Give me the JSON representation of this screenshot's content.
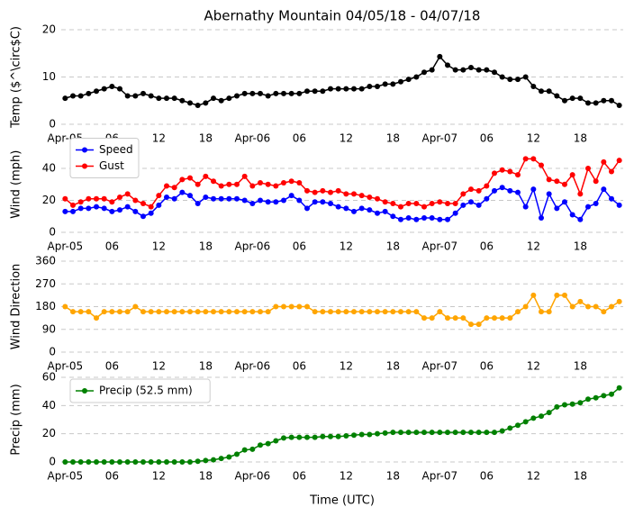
{
  "chart_data": [
    {
      "type": "line",
      "title": "Abernathy Mountain 04/05/18 - 04/07/18",
      "ylabel": "Temp ($^\\circ$C)",
      "x": [
        0,
        1,
        2,
        3,
        4,
        5,
        6,
        7,
        8,
        9,
        10,
        11,
        12,
        13,
        14,
        15,
        16,
        17,
        18,
        19,
        20,
        21,
        22,
        23,
        24,
        25,
        26,
        27,
        28,
        29,
        30,
        31,
        32,
        33,
        34,
        35,
        36,
        37,
        38,
        39,
        40,
        41,
        42,
        43,
        44,
        45,
        46,
        47,
        48,
        49,
        50,
        51,
        52,
        53,
        54,
        55,
        56,
        57,
        58,
        59,
        60,
        61,
        62,
        63,
        64,
        65,
        66,
        67,
        68,
        69,
        70,
        71
      ],
      "xlim": [
        -0.5,
        71.5
      ],
      "xticks": [
        {
          "value": 0,
          "label": "Apr-05"
        },
        {
          "value": 6,
          "label": "06"
        },
        {
          "value": 12,
          "label": "12"
        },
        {
          "value": 18,
          "label": "18"
        },
        {
          "value": 24,
          "label": "Apr-06"
        },
        {
          "value": 30,
          "label": "06"
        },
        {
          "value": 36,
          "label": "12"
        },
        {
          "value": 42,
          "label": "18"
        },
        {
          "value": 48,
          "label": "Apr-07"
        },
        {
          "value": 54,
          "label": "06"
        },
        {
          "value": 60,
          "label": "12"
        },
        {
          "value": 66,
          "label": "18"
        }
      ],
      "ylim": [
        0,
        20
      ],
      "yticks": [
        0,
        10,
        20
      ],
      "grid": true,
      "series": [
        {
          "color": "#000000",
          "values": [
            5.5,
            6,
            6,
            6.5,
            7,
            7.5,
            8,
            7.5,
            6,
            6,
            6.5,
            6,
            5.5,
            5.5,
            5.5,
            5,
            4.5,
            4,
            4.5,
            5.5,
            5,
            5.5,
            6,
            6.5,
            6.5,
            6.5,
            6,
            6.5,
            6.5,
            6.5,
            6.5,
            7,
            7,
            7,
            7.5,
            7.5,
            7.5,
            7.5,
            7.5,
            8,
            8,
            8.5,
            8.5,
            9,
            9.5,
            10,
            11,
            11.5,
            14.3,
            12.5,
            11.5,
            11.5,
            12,
            11.5,
            11.5,
            11,
            10,
            9.5,
            9.5,
            10,
            8,
            7,
            7,
            6,
            5,
            5.5,
            5.5,
            4.5,
            4.5,
            5,
            5,
            4
          ]
        }
      ]
    },
    {
      "type": "line",
      "ylabel": "Wind (mph)",
      "x": [
        0,
        1,
        2,
        3,
        4,
        5,
        6,
        7,
        8,
        9,
        10,
        11,
        12,
        13,
        14,
        15,
        16,
        17,
        18,
        19,
        20,
        21,
        22,
        23,
        24,
        25,
        26,
        27,
        28,
        29,
        30,
        31,
        32,
        33,
        34,
        35,
        36,
        37,
        38,
        39,
        40,
        41,
        42,
        43,
        44,
        45,
        46,
        47,
        48,
        49,
        50,
        51,
        52,
        53,
        54,
        55,
        56,
        57,
        58,
        59,
        60,
        61,
        62,
        63,
        64,
        65,
        66,
        67,
        68,
        69,
        70,
        71
      ],
      "xlim": [
        -0.5,
        71.5
      ],
      "xticks": [
        {
          "value": 0,
          "label": "Apr-05"
        },
        {
          "value": 6,
          "label": "06"
        },
        {
          "value": 12,
          "label": "12"
        },
        {
          "value": 18,
          "label": "18"
        },
        {
          "value": 24,
          "label": "Apr-06"
        },
        {
          "value": 30,
          "label": "06"
        },
        {
          "value": 36,
          "label": "12"
        },
        {
          "value": 42,
          "label": "18"
        },
        {
          "value": 48,
          "label": "Apr-07"
        },
        {
          "value": 54,
          "label": "06"
        },
        {
          "value": 60,
          "label": "12"
        },
        {
          "value": 66,
          "label": "18"
        }
      ],
      "ylim": [
        0,
        60
      ],
      "yticks": [
        0,
        20,
        40
      ],
      "grid": true,
      "legend": "upper left",
      "series": [
        {
          "name": "Speed",
          "color": "#0000ff",
          "values": [
            13,
            13,
            15,
            15,
            16,
            15,
            13,
            14,
            16,
            13,
            10,
            12,
            17,
            22,
            21,
            25,
            23,
            18,
            22,
            21,
            21,
            21,
            21,
            20,
            18,
            20,
            19,
            19,
            20,
            23,
            20,
            15,
            19,
            19,
            18,
            16,
            15,
            13,
            15,
            14,
            12,
            13,
            10,
            8,
            9,
            8,
            9,
            9,
            8,
            8,
            12,
            17,
            19,
            17,
            21,
            26,
            28,
            26,
            25,
            16,
            27,
            9,
            24,
            15,
            19,
            11,
            8,
            16,
            18,
            27,
            21,
            17
          ]
        },
        {
          "name": "Gust",
          "color": "#ff0000",
          "values": [
            21,
            17,
            19,
            21,
            21,
            21,
            19,
            22,
            24,
            20,
            18,
            16,
            23,
            29,
            28,
            33,
            34,
            30,
            35,
            32,
            29,
            30,
            30,
            35,
            29,
            31,
            30,
            29,
            31,
            32,
            31,
            26,
            25,
            26,
            25,
            26,
            24,
            24,
            23,
            22,
            21,
            19,
            18,
            16,
            18,
            18,
            16,
            18,
            19,
            18,
            18,
            24,
            27,
            26,
            29,
            37,
            39,
            38,
            36,
            46,
            46,
            42,
            33,
            32,
            30,
            36,
            24,
            40,
            32,
            44,
            38,
            45
          ]
        }
      ]
    },
    {
      "type": "line",
      "ylabel": "Wind Direction",
      "x": [
        0,
        1,
        2,
        3,
        4,
        5,
        6,
        7,
        8,
        9,
        10,
        11,
        12,
        13,
        14,
        15,
        16,
        17,
        18,
        19,
        20,
        21,
        22,
        23,
        24,
        25,
        26,
        27,
        28,
        29,
        30,
        31,
        32,
        33,
        34,
        35,
        36,
        37,
        38,
        39,
        40,
        41,
        42,
        43,
        44,
        45,
        46,
        47,
        48,
        49,
        50,
        51,
        52,
        53,
        54,
        55,
        56,
        57,
        58,
        59,
        60,
        61,
        62,
        63,
        64,
        65,
        66,
        67,
        68,
        69,
        70,
        71
      ],
      "xlim": [
        -0.5,
        71.5
      ],
      "xticks": [
        {
          "value": 0,
          "label": "Apr-05"
        },
        {
          "value": 6,
          "label": "06"
        },
        {
          "value": 12,
          "label": "12"
        },
        {
          "value": 18,
          "label": "18"
        },
        {
          "value": 24,
          "label": "Apr-06"
        },
        {
          "value": 30,
          "label": "06"
        },
        {
          "value": 36,
          "label": "12"
        },
        {
          "value": 42,
          "label": "18"
        },
        {
          "value": 48,
          "label": "Apr-07"
        },
        {
          "value": 54,
          "label": "06"
        },
        {
          "value": 60,
          "label": "12"
        },
        {
          "value": 66,
          "label": "18"
        }
      ],
      "ylim": [
        0,
        360
      ],
      "yticks": [
        0,
        90,
        180,
        270,
        360
      ],
      "grid": true,
      "series": [
        {
          "color": "#ffa500",
          "values": [
            180,
            160,
            160,
            160,
            135,
            160,
            160,
            160,
            160,
            180,
            160,
            160,
            160,
            160,
            160,
            160,
            160,
            160,
            160,
            160,
            160,
            160,
            160,
            160,
            160,
            160,
            160,
            180,
            180,
            180,
            180,
            180,
            160,
            160,
            160,
            160,
            160,
            160,
            160,
            160,
            160,
            160,
            160,
            160,
            160,
            160,
            135,
            135,
            160,
            135,
            135,
            135,
            110,
            110,
            135,
            135,
            135,
            135,
            160,
            180,
            225,
            160,
            160,
            225,
            225,
            180,
            200,
            180,
            180,
            160,
            180,
            200
          ]
        }
      ]
    },
    {
      "type": "line",
      "ylabel": "Precip (mm)",
      "xlabel": "Time (UTC)",
      "x": [
        0,
        1,
        2,
        3,
        4,
        5,
        6,
        7,
        8,
        9,
        10,
        11,
        12,
        13,
        14,
        15,
        16,
        17,
        18,
        19,
        20,
        21,
        22,
        23,
        24,
        25,
        26,
        27,
        28,
        29,
        30,
        31,
        32,
        33,
        34,
        35,
        36,
        37,
        38,
        39,
        40,
        41,
        42,
        43,
        44,
        45,
        46,
        47,
        48,
        49,
        50,
        51,
        52,
        53,
        54,
        55,
        56,
        57,
        58,
        59,
        60,
        61,
        62,
        63,
        64,
        65,
        66,
        67,
        68,
        69,
        70,
        71
      ],
      "xlim": [
        -0.5,
        71.5
      ],
      "xticks": [
        {
          "value": 0,
          "label": "Apr-05"
        },
        {
          "value": 6,
          "label": "06"
        },
        {
          "value": 12,
          "label": "12"
        },
        {
          "value": 18,
          "label": "18"
        },
        {
          "value": 24,
          "label": "Apr-06"
        },
        {
          "value": 30,
          "label": "06"
        },
        {
          "value": 36,
          "label": "12"
        },
        {
          "value": 42,
          "label": "18"
        },
        {
          "value": 48,
          "label": "Apr-07"
        },
        {
          "value": 54,
          "label": "06"
        },
        {
          "value": 60,
          "label": "12"
        },
        {
          "value": 66,
          "label": "18"
        }
      ],
      "ylim": [
        0,
        60
      ],
      "yticks": [
        0,
        20,
        40,
        60
      ],
      "grid": true,
      "legend": "upper left",
      "series": [
        {
          "name": "Precip (52.5 mm)",
          "color": "#008000",
          "values": [
            0,
            0,
            0,
            0,
            0,
            0,
            0,
            0,
            0,
            0,
            0,
            0,
            0,
            0,
            0,
            0,
            0,
            0.5,
            1,
            1.5,
            2.5,
            3.5,
            5.5,
            8.5,
            9,
            12,
            13,
            15,
            17,
            17.5,
            17.5,
            17.5,
            17.5,
            18,
            18,
            18,
            18.5,
            19,
            19.5,
            19.5,
            20,
            20.5,
            21,
            21,
            21,
            21,
            21,
            21,
            21,
            21,
            21,
            21,
            21,
            21,
            21,
            21,
            22,
            24,
            26,
            28.5,
            31,
            32.5,
            35,
            39,
            40.5,
            41,
            42,
            44.5,
            45.5,
            47,
            48,
            52.5
          ]
        }
      ]
    }
  ]
}
